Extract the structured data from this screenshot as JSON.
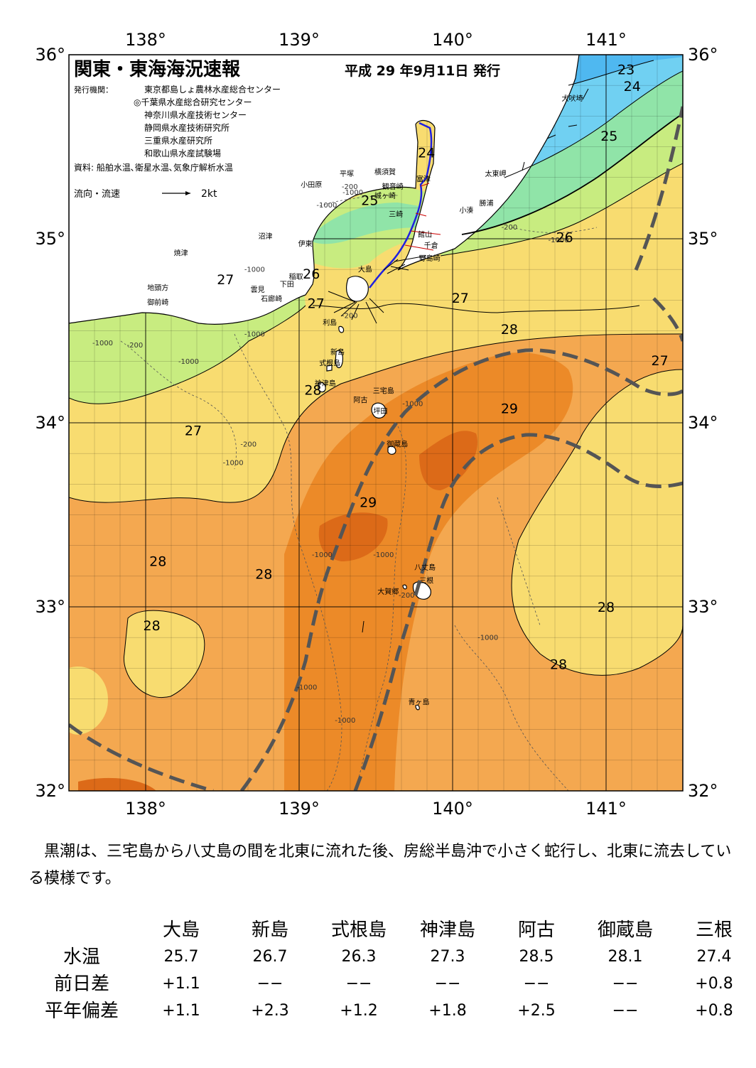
{
  "title": "関東・東海海況速報",
  "issue_date": "平成 29 年9月11日 発行",
  "issuers_label": "発行機関：",
  "issuers": [
    "東京都島しょ農林水産総合センター",
    "◎千葉県水産総合研究センター",
    "神奈川県水産技術センター",
    "静岡県水産技術研究所",
    "三重県水産研究所",
    "和歌山県水産試験場"
  ],
  "source": "資料: 船舶水温､衛星水温､気象庁解析水温",
  "legend": {
    "label": "流向・流速",
    "scale": "2kt"
  },
  "lon_ticks": [
    "138°",
    "139°",
    "140°",
    "141°"
  ],
  "lat_ticks": [
    "36°",
    "35°",
    "34°",
    "33°",
    "32°"
  ],
  "colors": {
    "land": "#ffffff",
    "c23": "#4fb8f0",
    "c24": "#70d0f2",
    "c25": "#90e4a8",
    "c26": "#c8ec80",
    "c27": "#f8dc70",
    "c28": "#f4a850",
    "c29": "#ec8a28",
    "c30": "#dc6a18",
    "kuroshio": "#555555",
    "track": "#2020e0"
  },
  "temp_labels": [
    {
      "text": "23",
      "lon": 141.13,
      "lat": 35.92
    },
    {
      "text": "24",
      "lon": 141.17,
      "lat": 35.83
    },
    {
      "text": "24",
      "lon": 139.83,
      "lat": 35.47
    },
    {
      "text": "25",
      "lon": 141.02,
      "lat": 35.56
    },
    {
      "text": "25",
      "lon": 139.46,
      "lat": 35.21
    },
    {
      "text": "26",
      "lon": 140.73,
      "lat": 35.01
    },
    {
      "text": "26",
      "lon": 139.08,
      "lat": 34.81
    },
    {
      "text": "27",
      "lon": 138.52,
      "lat": 34.78
    },
    {
      "text": "27",
      "lon": 139.11,
      "lat": 34.65
    },
    {
      "text": "27",
      "lon": 140.05,
      "lat": 34.68
    },
    {
      "text": "28",
      "lon": 140.37,
      "lat": 34.51
    },
    {
      "text": "27",
      "lon": 141.35,
      "lat": 34.34
    },
    {
      "text": "28",
      "lon": 139.09,
      "lat": 34.18
    },
    {
      "text": "29",
      "lon": 140.37,
      "lat": 34.08
    },
    {
      "text": "27",
      "lon": 138.31,
      "lat": 33.96
    },
    {
      "text": "29",
      "lon": 139.45,
      "lat": 33.57
    },
    {
      "text": "28",
      "lon": 138.08,
      "lat": 33.25
    },
    {
      "text": "28",
      "lon": 138.77,
      "lat": 33.18
    },
    {
      "text": "28",
      "lon": 141.0,
      "lat": 33.0
    },
    {
      "text": "28",
      "lon": 138.04,
      "lat": 32.9
    },
    {
      "text": "28",
      "lon": 140.69,
      "lat": 32.69
    }
  ],
  "depth_labels": [
    {
      "text": "-1000",
      "lon": 139.18,
      "lat": 35.17
    },
    {
      "text": "-1000",
      "lon": 139.35,
      "lat": 35.24
    },
    {
      "text": "-200",
      "lon": 139.33,
      "lat": 35.27
    },
    {
      "text": "-200",
      "lon": 140.37,
      "lat": 35.05
    },
    {
      "text": "-1000",
      "lon": 140.69,
      "lat": 34.98
    },
    {
      "text": "-1000",
      "lon": 138.71,
      "lat": 34.82
    },
    {
      "text": "-200",
      "lon": 139.33,
      "lat": 34.57
    },
    {
      "text": "-1000",
      "lon": 138.71,
      "lat": 34.47
    },
    {
      "text": "-200",
      "lon": 137.93,
      "lat": 34.41
    },
    {
      "text": "-1000",
      "lon": 137.72,
      "lat": 34.42
    },
    {
      "text": "-1000",
      "lon": 138.28,
      "lat": 34.32
    },
    {
      "text": "-200",
      "lon": 138.67,
      "lat": 33.87
    },
    {
      "text": "-1000",
      "lon": 138.57,
      "lat": 33.77
    },
    {
      "text": "-1000",
      "lon": 139.74,
      "lat": 34.09
    },
    {
      "text": "-1000",
      "lon": 139.15,
      "lat": 33.27
    },
    {
      "text": "-1000",
      "lon": 139.55,
      "lat": 33.27
    },
    {
      "text": "-200",
      "lon": 139.7,
      "lat": 33.05
    },
    {
      "text": "-1000",
      "lon": 140.23,
      "lat": 32.82
    },
    {
      "text": "-1000",
      "lon": 139.05,
      "lat": 32.55
    },
    {
      "text": "-1000",
      "lon": 139.3,
      "lat": 32.37
    }
  ],
  "places": [
    {
      "text": "犬吠埼",
      "lon": 140.78,
      "lat": 35.75
    },
    {
      "text": "太東岬",
      "lon": 140.28,
      "lat": 35.34
    },
    {
      "text": "勝浦",
      "lon": 140.22,
      "lat": 35.18
    },
    {
      "text": "小湊",
      "lon": 140.09,
      "lat": 35.14
    },
    {
      "text": "富津",
      "lon": 139.81,
      "lat": 35.31
    },
    {
      "text": "館山",
      "lon": 139.82,
      "lat": 35.01
    },
    {
      "text": "千倉",
      "lon": 139.86,
      "lat": 34.95
    },
    {
      "text": "野島崎",
      "lon": 139.85,
      "lat": 34.88
    },
    {
      "text": "横須賀",
      "lon": 139.56,
      "lat": 35.35
    },
    {
      "text": "観音崎",
      "lon": 139.61,
      "lat": 35.27
    },
    {
      "text": "城ヶ崎",
      "lon": 139.56,
      "lat": 35.22
    },
    {
      "text": "三崎",
      "lon": 139.63,
      "lat": 35.12
    },
    {
      "text": "平塚",
      "lon": 139.31,
      "lat": 35.34
    },
    {
      "text": "小田原",
      "lon": 139.08,
      "lat": 35.28
    },
    {
      "text": "沼津",
      "lon": 138.78,
      "lat": 35.0
    },
    {
      "text": "伊東",
      "lon": 139.04,
      "lat": 34.96
    },
    {
      "text": "焼津",
      "lon": 138.23,
      "lat": 34.91
    },
    {
      "text": "大島",
      "lon": 139.43,
      "lat": 34.82
    },
    {
      "text": "稲取",
      "lon": 138.98,
      "lat": 34.78
    },
    {
      "text": "下田",
      "lon": 138.92,
      "lat": 34.74
    },
    {
      "text": "雲見",
      "lon": 138.73,
      "lat": 34.71
    },
    {
      "text": "石廊崎",
      "lon": 138.82,
      "lat": 34.66
    },
    {
      "text": "地頭方",
      "lon": 138.08,
      "lat": 34.72
    },
    {
      "text": "御前崎",
      "lon": 138.08,
      "lat": 34.64
    },
    {
      "text": "利島",
      "lon": 139.2,
      "lat": 34.53
    },
    {
      "text": "新島",
      "lon": 139.25,
      "lat": 34.37
    },
    {
      "text": "式根島",
      "lon": 139.2,
      "lat": 34.31
    },
    {
      "text": "神津島",
      "lon": 139.17,
      "lat": 34.2
    },
    {
      "text": "三宅島",
      "lon": 139.55,
      "lat": 34.16
    },
    {
      "text": "阿古",
      "lon": 139.4,
      "lat": 34.11
    },
    {
      "text": "坪田",
      "lon": 139.53,
      "lat": 34.05
    },
    {
      "text": "御蔵島",
      "lon": 139.64,
      "lat": 33.87
    },
    {
      "text": "八丈島",
      "lon": 139.82,
      "lat": 33.2
    },
    {
      "text": "三根",
      "lon": 139.83,
      "lat": 33.13
    },
    {
      "text": "大賀郷",
      "lon": 139.58,
      "lat": 33.07
    },
    {
      "text": "青ヶ島",
      "lon": 139.78,
      "lat": 32.47
    }
  ],
  "summary": "　黒潮は、三宅島から八丈島の間を北東に流れた後、房総半島沖で小さく蛇行し、北東に流去している模様です。",
  "table": {
    "stations": [
      "大島",
      "新島",
      "式根島",
      "神津島",
      "阿古",
      "御蔵島",
      "三根"
    ],
    "rows": [
      {
        "label": "水温",
        "values": [
          "25.7",
          "26.7",
          "26.3",
          "27.3",
          "28.5",
          "28.1",
          "27.4"
        ]
      },
      {
        "label": "前日差",
        "values": [
          "+1.1",
          "−−",
          "−−",
          "−−",
          "−−",
          "−−",
          "+0.8"
        ]
      },
      {
        "label": "平年偏差",
        "values": [
          "+1.1",
          "+2.3",
          "+1.2",
          "+1.8",
          "+2.5",
          "−−",
          "+0.8"
        ]
      }
    ]
  }
}
